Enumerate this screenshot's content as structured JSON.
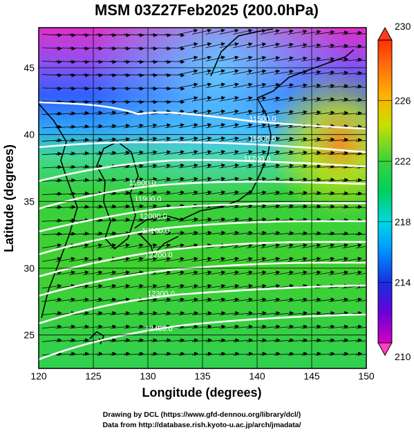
{
  "title": "MSM 03Z27Feb2025 (200.0hPa)",
  "xlabel": "Longitude (degrees)",
  "ylabel": "Latitude  (degrees)",
  "credits": [
    "Drawing by DCL (https://www.gfd-dennou.org/library/dcl/)",
    "Data from http://database.rish.kyoto-u.ac.jp/arch/jmadata/"
  ],
  "chart_data": {
    "type": "heatmap",
    "variable_overlay": [
      "wind vectors",
      "geopotential height contours"
    ],
    "x_range": [
      120,
      150
    ],
    "y_range": [
      22.5,
      48
    ],
    "x_ticks": [
      "120",
      "125",
      "130",
      "135",
      "140",
      "145",
      "150"
    ],
    "y_ticks": [
      "25",
      "30",
      "35",
      "40",
      "45"
    ],
    "colorbar": {
      "range": [
        210,
        230
      ],
      "ticks": [
        "210",
        "214",
        "218",
        "222",
        "226",
        "230"
      ]
    },
    "contour_labels": [
      {
        "text": "11500.0",
        "lon": 140.5,
        "lat": 41.0
      },
      {
        "text": "11600.0",
        "lon": 140.5,
        "lat": 39.5
      },
      {
        "text": "11700.0",
        "lon": 140.0,
        "lat": 38.0
      },
      {
        "text": "11800.0",
        "lon": 129.5,
        "lat": 36.2
      },
      {
        "text": "11900.0",
        "lon": 130.0,
        "lat": 35.0
      },
      {
        "text": "12000.0",
        "lon": 130.5,
        "lat": 33.7
      },
      {
        "text": "12100.0",
        "lon": 130.7,
        "lat": 32.6
      },
      {
        "text": "12200.0",
        "lon": 131.0,
        "lat": 30.8
      },
      {
        "text": "12300.0",
        "lon": 131.2,
        "lat": 27.9
      },
      {
        "text": "12400.0",
        "lon": 131.0,
        "lat": 25.3
      }
    ]
  }
}
